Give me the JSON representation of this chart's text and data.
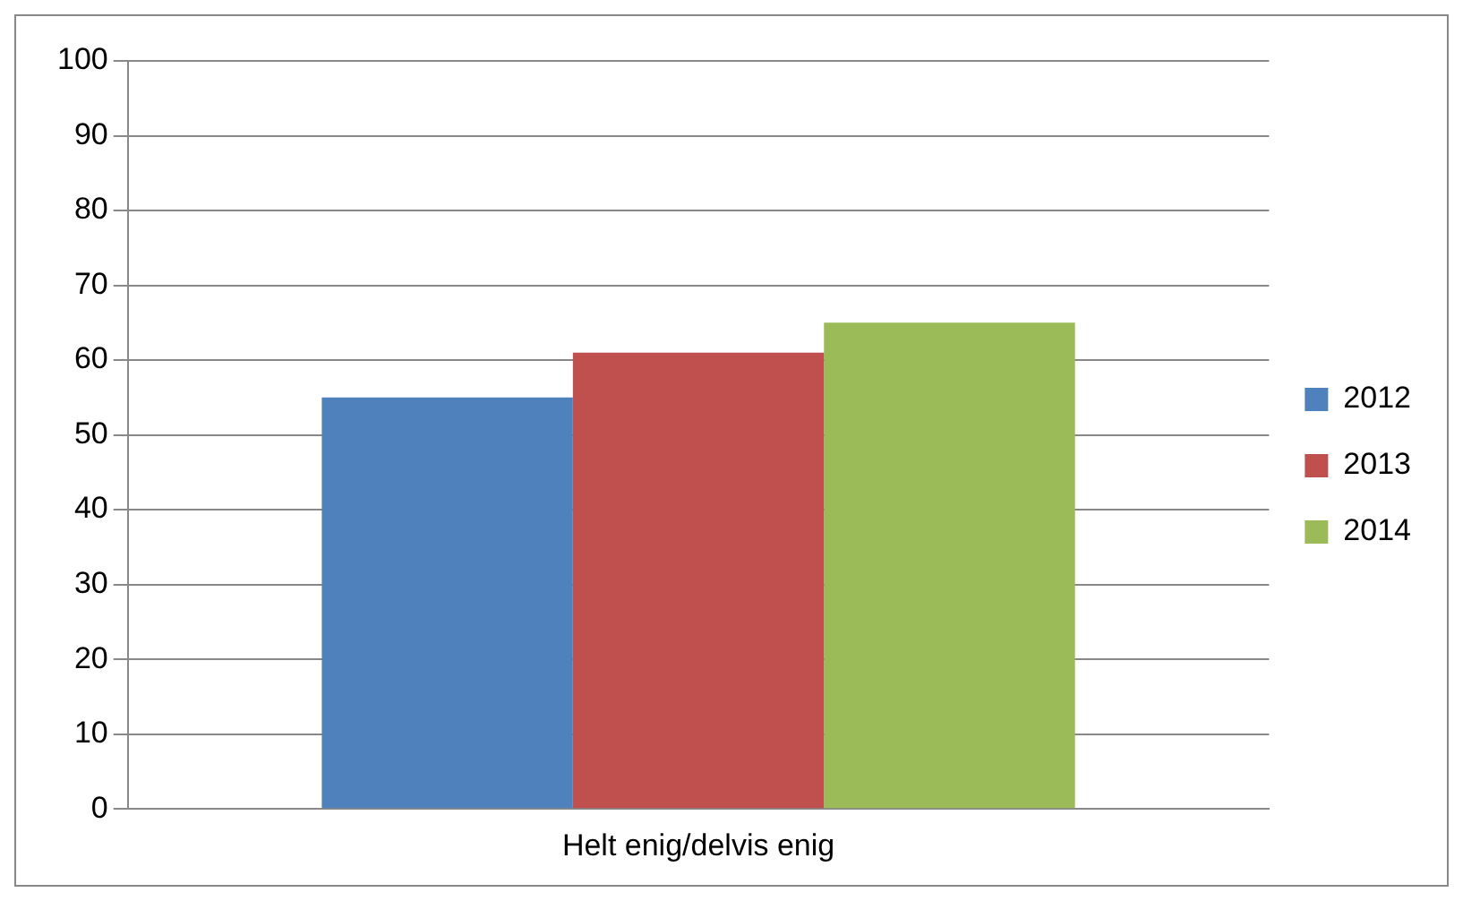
{
  "chart_data": {
    "type": "bar",
    "categories": [
      "Helt enig/delvis enig"
    ],
    "series": [
      {
        "name": "2012",
        "color": "#4f81bd",
        "values": [
          55
        ]
      },
      {
        "name": "2013",
        "color": "#c0504d",
        "values": [
          61
        ]
      },
      {
        "name": "2014",
        "color": "#9bbb59",
        "values": [
          65
        ]
      }
    ],
    "ylim": [
      0,
      100
    ],
    "yticks": [
      0,
      10,
      20,
      30,
      40,
      50,
      60,
      70,
      80,
      90,
      100
    ],
    "grid": "y",
    "legend": "right"
  }
}
